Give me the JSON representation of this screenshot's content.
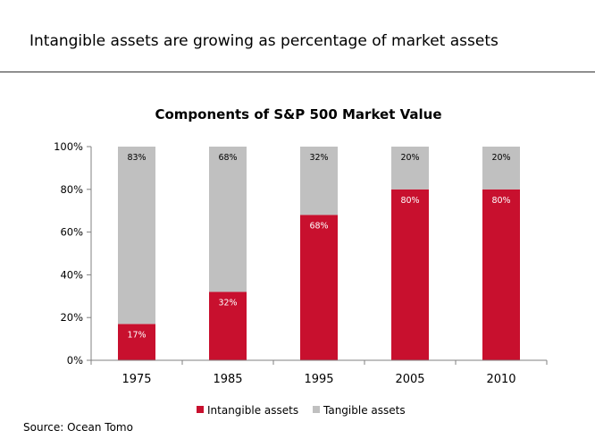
{
  "slide": {
    "title": "Intangible assets are growing as percentage of market assets",
    "source": "Source: Ocean Tomo"
  },
  "chart_data": {
    "type": "bar",
    "stacked": true,
    "title": "Components of S&P 500 Market Value",
    "categories": [
      "1975",
      "1985",
      "1995",
      "2005",
      "2010"
    ],
    "series": [
      {
        "name": "Intangible assets",
        "values": [
          17,
          32,
          68,
          80,
          80
        ],
        "labels": [
          "17%",
          "32%",
          "68%",
          "80%",
          "80%"
        ],
        "color": "#c8102e",
        "label_color": "#ffffff"
      },
      {
        "name": "Tangible assets",
        "values": [
          83,
          68,
          32,
          20,
          20
        ],
        "labels": [
          "83%",
          "68%",
          "32%",
          "20%",
          "20%"
        ],
        "color": "#c0c0c0",
        "label_color": "#000000"
      }
    ],
    "ylim": [
      0,
      100
    ],
    "yticks": [
      0,
      20,
      40,
      60,
      80,
      100
    ],
    "ytick_labels": [
      "0%",
      "20%",
      "40%",
      "60%",
      "80%",
      "100%"
    ],
    "xlabel": "",
    "ylabel": "",
    "grid": false,
    "legend": "bottom"
  }
}
